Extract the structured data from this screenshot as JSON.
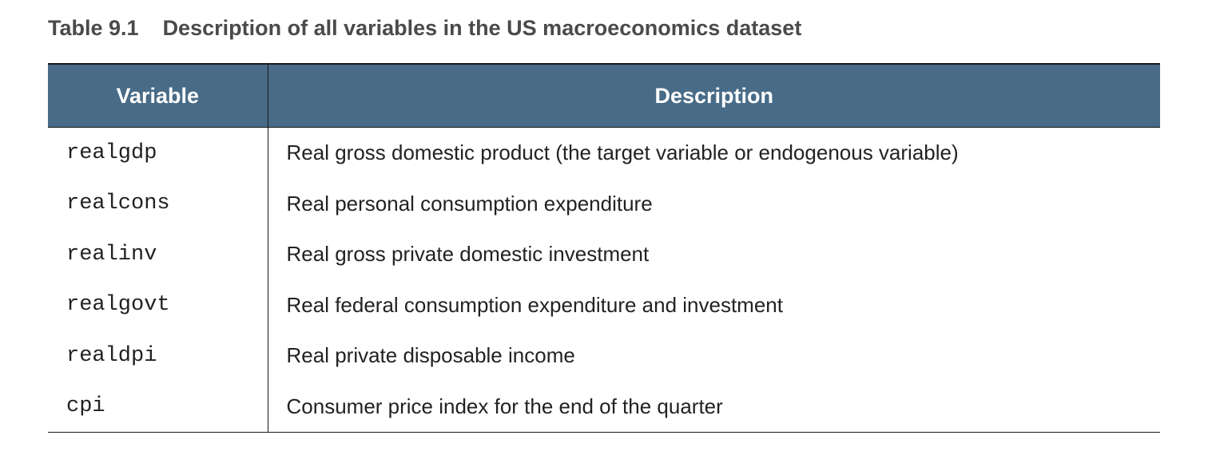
{
  "caption": {
    "number": "Table 9.1",
    "title": "Description of all variables in the US macroeconomics dataset"
  },
  "table": {
    "headers": [
      "Variable",
      "Description"
    ],
    "rows": [
      {
        "variable": "realgdp",
        "description": "Real gross domestic product (the target variable or endogenous variable)"
      },
      {
        "variable": "realcons",
        "description": "Real personal consumption expenditure"
      },
      {
        "variable": "realinv",
        "description": "Real gross private domestic investment"
      },
      {
        "variable": "realgovt",
        "description": "Real federal consumption expenditure and investment"
      },
      {
        "variable": "realdpi",
        "description": "Real private disposable income"
      },
      {
        "variable": "cpi",
        "description": "Consumer price index for the end of the quarter"
      }
    ]
  },
  "colors": {
    "header_background": "#486b87",
    "header_text": "#ffffff",
    "caption_text": "#4a4a4a"
  }
}
